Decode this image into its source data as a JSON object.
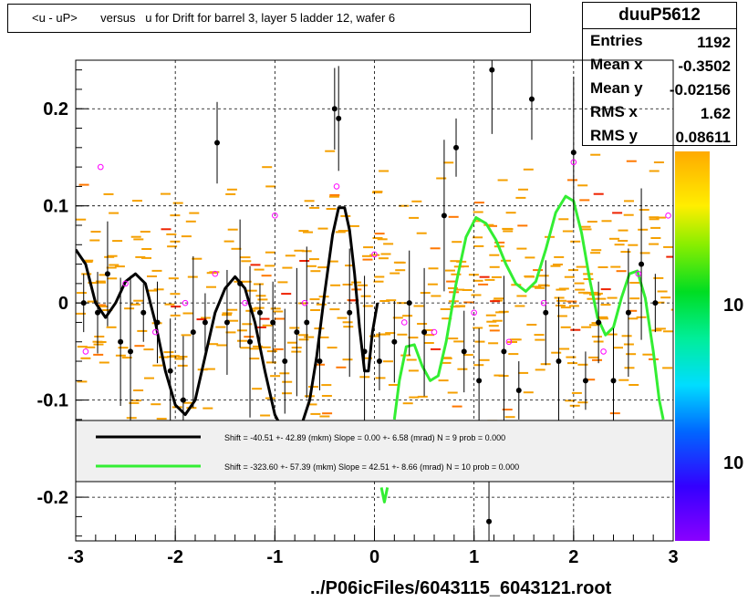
{
  "title": "<u - uP>       versus   u for Drift for barrel 3, layer 5 ladder 12, wafer 6",
  "stats": {
    "name": "duuP5612",
    "rows": [
      {
        "key": "Entries",
        "value": "1192"
      },
      {
        "key": "Mean x",
        "value": "-0.3502"
      },
      {
        "key": "Mean y",
        "value": "-0.02156"
      },
      {
        "key": "RMS x",
        "value": "1.62"
      },
      {
        "key": "RMS y",
        "value": "0.08611"
      }
    ]
  },
  "xlabel": "../P06icFiles/6043115_6043121.root",
  "legend": [
    {
      "text": "Shift =   -40.51 +- 42.89 (mkm) Slope =     0.00 +- 6.58 (mrad)  N = 9 prob = 0.000",
      "color": "#000000"
    },
    {
      "text": "Shift =  -323.60 +- 57.39 (mkm) Slope =    42.51 +- 8.66 (mrad)  N = 10 prob = 0.000",
      "color": "#33ee33"
    }
  ],
  "colorbar_labels": [
    "10",
    "10"
  ],
  "chart_data": {
    "type": "scatter",
    "title": "<u - uP>       versus   u for Drift for barrel 3, layer 5 ladder 12, wafer 6",
    "xlabel": "../P06icFiles/6043115_6043121.root",
    "ylabel": "",
    "xlim": [
      -3,
      3
    ],
    "ylim": [
      -0.245,
      0.25
    ],
    "x_ticks": [
      -3,
      -2,
      -1,
      0,
      1,
      2,
      3
    ],
    "y_ticks": [
      -0.2,
      -0.1,
      0,
      0.1,
      0.2
    ],
    "grid": true,
    "profile_points": [
      {
        "x": -2.92,
        "y": 0.0
      },
      {
        "x": -2.78,
        "y": -0.01
      },
      {
        "x": -2.68,
        "y": 0.03
      },
      {
        "x": -2.55,
        "y": -0.04
      },
      {
        "x": -2.45,
        "y": -0.05
      },
      {
        "x": -2.32,
        "y": -0.01
      },
      {
        "x": -2.18,
        "y": -0.02
      },
      {
        "x": -2.05,
        "y": -0.07
      },
      {
        "x": -1.92,
        "y": -0.1
      },
      {
        "x": -1.82,
        "y": -0.03
      },
      {
        "x": -1.7,
        "y": -0.02
      },
      {
        "x": -1.58,
        "y": 0.165
      },
      {
        "x": -1.48,
        "y": -0.02
      },
      {
        "x": -1.35,
        "y": 0.02
      },
      {
        "x": -1.25,
        "y": -0.04
      },
      {
        "x": -1.15,
        "y": -0.01
      },
      {
        "x": -1.02,
        "y": -0.02
      },
      {
        "x": -0.9,
        "y": -0.06
      },
      {
        "x": -0.78,
        "y": -0.03
      },
      {
        "x": -0.68,
        "y": -0.02
      },
      {
        "x": -0.55,
        "y": -0.06
      },
      {
        "x": -0.4,
        "y": 0.2
      },
      {
        "x": -0.36,
        "y": 0.19
      },
      {
        "x": -0.25,
        "y": -0.01
      },
      {
        "x": -0.1,
        "y": -0.05
      },
      {
        "x": 0.05,
        "y": -0.06
      },
      {
        "x": 0.2,
        "y": -0.04
      },
      {
        "x": 0.35,
        "y": 0.0
      },
      {
        "x": 0.5,
        "y": -0.03
      },
      {
        "x": 0.7,
        "y": 0.09
      },
      {
        "x": 0.82,
        "y": 0.16
      },
      {
        "x": 0.9,
        "y": -0.05
      },
      {
        "x": 1.05,
        "y": -0.08
      },
      {
        "x": 1.18,
        "y": 0.24
      },
      {
        "x": 1.3,
        "y": -0.05
      },
      {
        "x": 1.45,
        "y": -0.09
      },
      {
        "x": 1.58,
        "y": 0.21
      },
      {
        "x": 1.72,
        "y": -0.01
      },
      {
        "x": 1.85,
        "y": -0.06
      },
      {
        "x": 2.0,
        "y": 0.155
      },
      {
        "x": 2.12,
        "y": -0.08
      },
      {
        "x": 2.25,
        "y": -0.02
      },
      {
        "x": 2.4,
        "y": -0.08
      },
      {
        "x": 2.55,
        "y": -0.01
      },
      {
        "x": 2.68,
        "y": 0.04
      },
      {
        "x": 2.82,
        "y": 0.0
      },
      {
        "x": 1.15,
        "y": -0.225
      }
    ],
    "mean_points": [
      {
        "x": -2.9,
        "y": -0.05
      },
      {
        "x": -2.75,
        "y": 0.14
      },
      {
        "x": -2.5,
        "y": 0.02
      },
      {
        "x": -2.2,
        "y": -0.03
      },
      {
        "x": -1.9,
        "y": 0.0
      },
      {
        "x": -1.6,
        "y": 0.03
      },
      {
        "x": -1.3,
        "y": 0.0
      },
      {
        "x": -1.0,
        "y": 0.09
      },
      {
        "x": -0.7,
        "y": 0.0
      },
      {
        "x": -0.38,
        "y": 0.12
      },
      {
        "x": 0.0,
        "y": 0.05
      },
      {
        "x": 0.3,
        "y": -0.02
      },
      {
        "x": 0.6,
        "y": -0.03
      },
      {
        "x": 1.0,
        "y": -0.01
      },
      {
        "x": 1.35,
        "y": -0.04
      },
      {
        "x": 1.7,
        "y": 0.0
      },
      {
        "x": 2.0,
        "y": 0.145
      },
      {
        "x": 2.3,
        "y": -0.05
      },
      {
        "x": 2.65,
        "y": 0.03
      },
      {
        "x": 2.95,
        "y": 0.09
      }
    ],
    "series": [
      {
        "name": "Shift =   -40.51 +- 42.89 (mkm) Slope =     0.00 +- 6.58 (mrad)  N = 9 prob = 0.000",
        "color": "#000000",
        "curve": [
          [
            -3.0,
            0.055
          ],
          [
            -2.9,
            0.04
          ],
          [
            -2.8,
            0.0
          ],
          [
            -2.7,
            -0.015
          ],
          [
            -2.6,
            0.0
          ],
          [
            -2.5,
            0.022
          ],
          [
            -2.4,
            0.03
          ],
          [
            -2.3,
            0.02
          ],
          [
            -2.2,
            -0.02
          ],
          [
            -2.1,
            -0.07
          ],
          [
            -2.0,
            -0.105
          ],
          [
            -1.9,
            -0.115
          ],
          [
            -1.8,
            -0.1
          ],
          [
            -1.7,
            -0.055
          ],
          [
            -1.6,
            -0.01
          ],
          [
            -1.5,
            0.015
          ],
          [
            -1.4,
            0.027
          ],
          [
            -1.3,
            0.015
          ],
          [
            -1.2,
            -0.02
          ],
          [
            -1.1,
            -0.07
          ],
          [
            -1.0,
            -0.115
          ],
          [
            -0.95,
            -0.125
          ]
        ]
      },
      {
        "name": "",
        "color": "#000000",
        "curve": [
          [
            -0.72,
            -0.122
          ],
          [
            -0.65,
            -0.1
          ],
          [
            -0.58,
            -0.055
          ],
          [
            -0.5,
            0.01
          ],
          [
            -0.42,
            0.07
          ],
          [
            -0.36,
            0.098
          ],
          [
            -0.3,
            0.098
          ],
          [
            -0.25,
            0.075
          ],
          [
            -0.2,
            0.03
          ],
          [
            -0.15,
            -0.025
          ],
          [
            -0.1,
            -0.07
          ],
          [
            -0.06,
            -0.07
          ],
          [
            -0.02,
            -0.03
          ],
          [
            0.03,
            0.0
          ]
        ]
      },
      {
        "name": "Shift =  -323.60 +- 57.39 (mkm) Slope =    42.51 +- 8.66 (mrad)  N = 10 prob = 0.000",
        "color": "#33ee33",
        "curve": [
          [
            0.2,
            -0.12
          ],
          [
            0.25,
            -0.08
          ],
          [
            0.32,
            -0.045
          ],
          [
            0.4,
            -0.043
          ],
          [
            0.48,
            -0.065
          ],
          [
            0.56,
            -0.08
          ],
          [
            0.64,
            -0.075
          ],
          [
            0.72,
            -0.04
          ],
          [
            0.82,
            0.02
          ],
          [
            0.92,
            0.068
          ],
          [
            1.02,
            0.088
          ],
          [
            1.12,
            0.082
          ],
          [
            1.22,
            0.065
          ],
          [
            1.32,
            0.04
          ],
          [
            1.42,
            0.02
          ],
          [
            1.52,
            0.012
          ],
          [
            1.62,
            0.022
          ],
          [
            1.72,
            0.055
          ],
          [
            1.82,
            0.093
          ],
          [
            1.92,
            0.11
          ],
          [
            2.0,
            0.105
          ],
          [
            2.08,
            0.072
          ],
          [
            2.16,
            0.025
          ],
          [
            2.24,
            -0.015
          ],
          [
            2.32,
            -0.033
          ],
          [
            2.4,
            -0.025
          ],
          [
            2.48,
            0.005
          ],
          [
            2.56,
            0.03
          ],
          [
            2.64,
            0.033
          ],
          [
            2.72,
            0.005
          ],
          [
            2.8,
            -0.05
          ],
          [
            2.86,
            -0.1
          ],
          [
            2.9,
            -0.12
          ]
        ]
      },
      {
        "name": "",
        "color": "#33ee33",
        "curve": [
          [
            0.07,
            -0.19
          ],
          [
            0.1,
            -0.205
          ],
          [
            0.13,
            -0.19
          ]
        ]
      }
    ]
  }
}
